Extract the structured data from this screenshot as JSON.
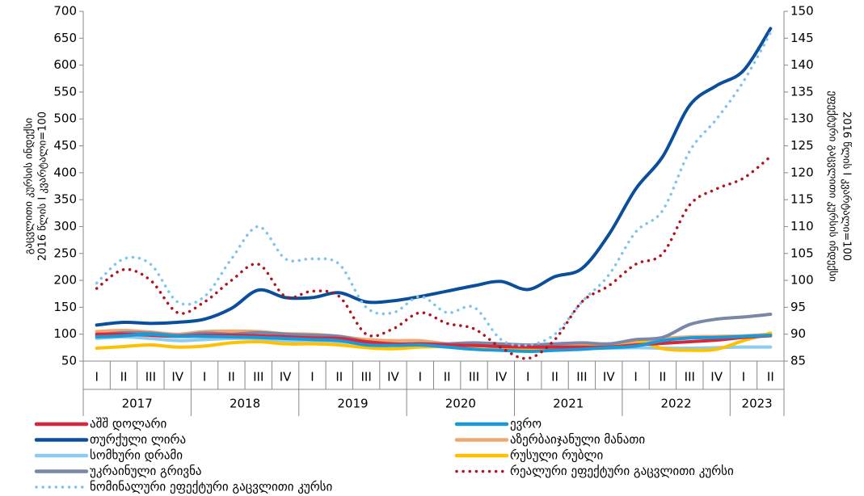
{
  "chart_data": {
    "type": "line",
    "y_label": [
      "გაცვლითი კურსის ინდექსი",
      "2016 წლის I კვარტალი=100"
    ],
    "y2_label": [
      "ეფექტური გაცვლითი კურსის ინდექსი",
      "2016 წლის I კვარტალი=100"
    ],
    "categories": [
      "I",
      "II",
      "III",
      "IV",
      "I",
      "II",
      "III",
      "IV",
      "I",
      "II",
      "III",
      "IV",
      "I",
      "II",
      "III",
      "IV",
      "I",
      "II",
      "III",
      "IV",
      "I",
      "II",
      "III",
      "IV",
      "I",
      "II"
    ],
    "years": [
      "2017",
      "2018",
      "2019",
      "2020",
      "2021",
      "2022",
      "2023"
    ],
    "ylim": [
      50,
      700
    ],
    "yticks": [
      50,
      100,
      150,
      200,
      250,
      300,
      350,
      400,
      450,
      500,
      550,
      600,
      650,
      700
    ],
    "y2lim": [
      85,
      150
    ],
    "y2ticks": [
      85,
      90,
      95,
      100,
      105,
      110,
      115,
      120,
      125,
      130,
      135,
      140,
      145,
      150
    ],
    "series": [
      {
        "name": "აშშ დოლარი",
        "color": "#d9263a",
        "style": "solid",
        "values": [
          100,
          100,
          98,
          96,
          98,
          98,
          97,
          95,
          93,
          92,
          86,
          82,
          82,
          80,
          79,
          77,
          76,
          76,
          76,
          76,
          80,
          83,
          86,
          89,
          94,
          97
        ]
      },
      {
        "name": "ევრო",
        "color": "#1a9bd7",
        "style": "solid",
        "values": [
          95,
          97,
          100,
          96,
          96,
          95,
          94,
          92,
          90,
          88,
          80,
          79,
          80,
          76,
          72,
          70,
          68,
          70,
          72,
          75,
          78,
          88,
          93,
          94,
          96,
          98
        ]
      },
      {
        "name": "თურქული ლირა",
        "color": "#0b4f9c",
        "style": "solid",
        "values": [
          117,
          122,
          120,
          122,
          128,
          148,
          182,
          168,
          168,
          177,
          160,
          162,
          170,
          180,
          190,
          198,
          183,
          207,
          222,
          285,
          370,
          430,
          525,
          562,
          590,
          668
        ]
      },
      {
        "name": "აზერბაიჯანული მანათი",
        "color": "#f0a870",
        "style": "solid",
        "values": [
          105,
          107,
          104,
          100,
          105,
          106,
          105,
          101,
          100,
          96,
          90,
          88,
          88,
          82,
          80,
          78,
          77,
          78,
          80,
          82,
          85,
          92,
          95,
          96,
          97,
          100
        ]
      },
      {
        "name": "სომხური დრამი",
        "color": "#8ecbf0",
        "style": "solid",
        "values": [
          92,
          95,
          92,
          88,
          90,
          92,
          92,
          88,
          88,
          86,
          82,
          80,
          80,
          80,
          80,
          78,
          76,
          75,
          74,
          74,
          75,
          74,
          74,
          75,
          76,
          76
        ]
      },
      {
        "name": "რუსული რუბლი",
        "color": "#ffc000",
        "style": "solid",
        "values": [
          74,
          77,
          80,
          76,
          78,
          84,
          86,
          82,
          82,
          80,
          75,
          73,
          76,
          77,
          78,
          76,
          72,
          75,
          77,
          78,
          88,
          73,
          70,
          72,
          88,
          102
        ]
      },
      {
        "name": "უკრაინული გრივნა",
        "color": "#7a87a8",
        "style": "solid",
        "values": [
          98,
          103,
          102,
          98,
          102,
          100,
          103,
          100,
          98,
          96,
          86,
          80,
          82,
          82,
          84,
          82,
          80,
          82,
          84,
          82,
          90,
          94,
          118,
          128,
          132,
          137
        ]
      },
      {
        "name": "რეალური ეფექტური გაცვლითი კურსი",
        "color": "#b0141c",
        "style": "dotted",
        "axis": "y2",
        "values": [
          98.5,
          102,
          100,
          94,
          96,
          100,
          103,
          97,
          98,
          97,
          90,
          91,
          94,
          92,
          91,
          87.5,
          85.5,
          89,
          96,
          99,
          103,
          105,
          114,
          117,
          119,
          123
        ]
      },
      {
        "name": "ნომინალური ეფექტური გაცვლითი კურსი",
        "color": "#7fc4ea",
        "style": "dotted",
        "axis": "y2",
        "values": [
          99.5,
          104,
          103,
          96,
          97,
          104,
          110,
          104,
          104,
          103,
          95,
          94,
          97,
          94,
          95,
          89,
          88,
          90,
          96,
          101,
          109,
          113,
          124,
          130,
          137,
          146
        ]
      }
    ]
  }
}
